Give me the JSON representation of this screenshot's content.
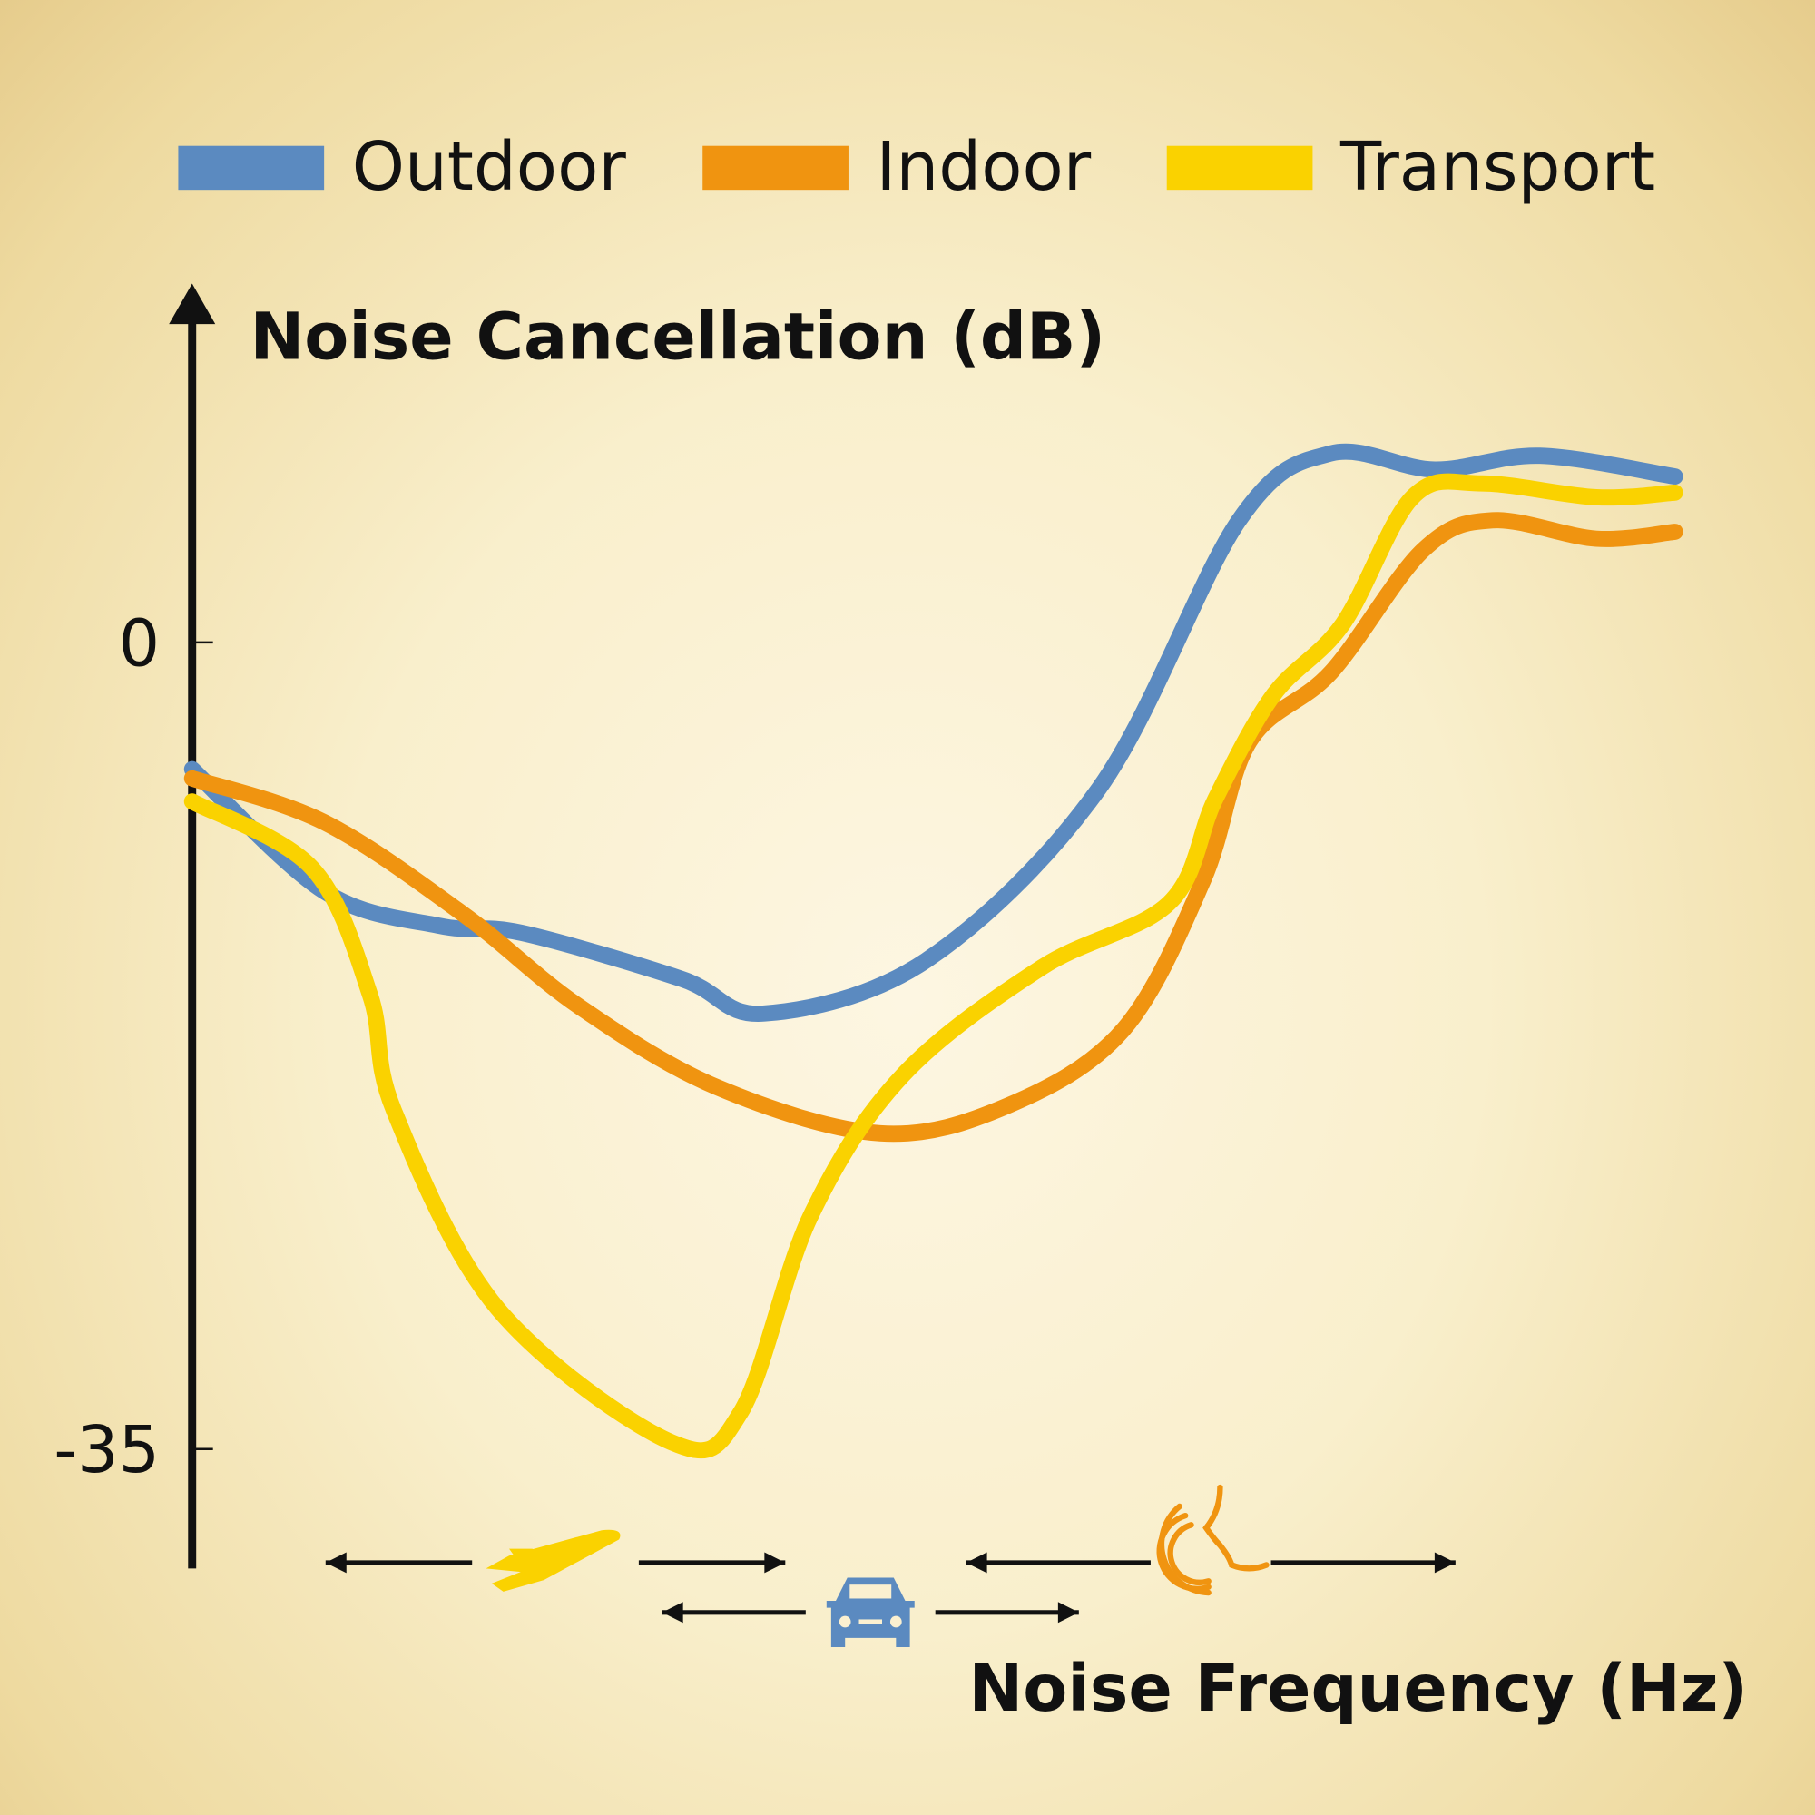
{
  "chart_data": {
    "type": "line",
    "title": "",
    "ylabel": "Noise Cancellation (dB)",
    "xlabel": "Noise Frequency (Hz)",
    "ylim": [
      -40,
      14
    ],
    "xlim": [
      0,
      100
    ],
    "y_ticks": [
      {
        "value": 0,
        "label": "0"
      },
      {
        "value": -35,
        "label": "-35"
      }
    ],
    "grid": false,
    "legend_position": "top",
    "series": [
      {
        "name": "Outdoor",
        "color": "#5b8ac0",
        "points": [
          [
            0,
            -5.5
          ],
          [
            8.9,
            -10.8
          ],
          [
            16.7,
            -12.3
          ],
          [
            22.2,
            -12.6
          ],
          [
            33,
            -14.6
          ],
          [
            38.6,
            -16.1
          ],
          [
            49.5,
            -13.8
          ],
          [
            61.2,
            -6.3
          ],
          [
            70.6,
            5.3
          ],
          [
            76.8,
            8.2
          ],
          [
            83.8,
            7.5
          ],
          [
            90.9,
            8.1
          ],
          [
            100,
            7.2
          ]
        ]
      },
      {
        "name": "Indoor",
        "color": "#f09410",
        "points": [
          [
            0,
            -5.9
          ],
          [
            8.9,
            -7.8
          ],
          [
            18.3,
            -11.8
          ],
          [
            26.1,
            -15.8
          ],
          [
            35.4,
            -19.3
          ],
          [
            46.4,
            -21.3
          ],
          [
            55,
            -20.1
          ],
          [
            62.8,
            -16.8
          ],
          [
            68.2,
            -10.3
          ],
          [
            71.3,
            -4.3
          ],
          [
            76.8,
            -1.3
          ],
          [
            83,
            4.0
          ],
          [
            87.7,
            5.3
          ],
          [
            94.7,
            4.5
          ],
          [
            100,
            4.8
          ]
        ]
      },
      {
        "name": "Transport",
        "color": "#fad200",
        "points": [
          [
            0,
            -6.9
          ],
          [
            8.1,
            -9.8
          ],
          [
            12,
            -15.3
          ],
          [
            13.6,
            -20.3
          ],
          [
            20.6,
            -28.9
          ],
          [
            32.3,
            -34.7
          ],
          [
            37,
            -33.4
          ],
          [
            41.7,
            -24.9
          ],
          [
            47.9,
            -18.8
          ],
          [
            57.3,
            -14.1
          ],
          [
            65.9,
            -11.3
          ],
          [
            69,
            -6.8
          ],
          [
            72.9,
            -2.3
          ],
          [
            77.6,
            0.8
          ],
          [
            82.3,
            6.3
          ],
          [
            87,
            6.9
          ],
          [
            94.7,
            6.3
          ],
          [
            100,
            6.5
          ]
        ]
      }
    ],
    "annotations": [
      {
        "icon": "airplane-icon",
        "color": "#fad200",
        "range": [
          9,
          40
        ]
      },
      {
        "icon": "car-icon",
        "color": "#5b8ac0",
        "range": [
          31.7,
          59.8
        ]
      },
      {
        "icon": "speaking-head-icon",
        "color": "#f09410",
        "range": [
          52.2,
          85.2
        ]
      }
    ]
  }
}
